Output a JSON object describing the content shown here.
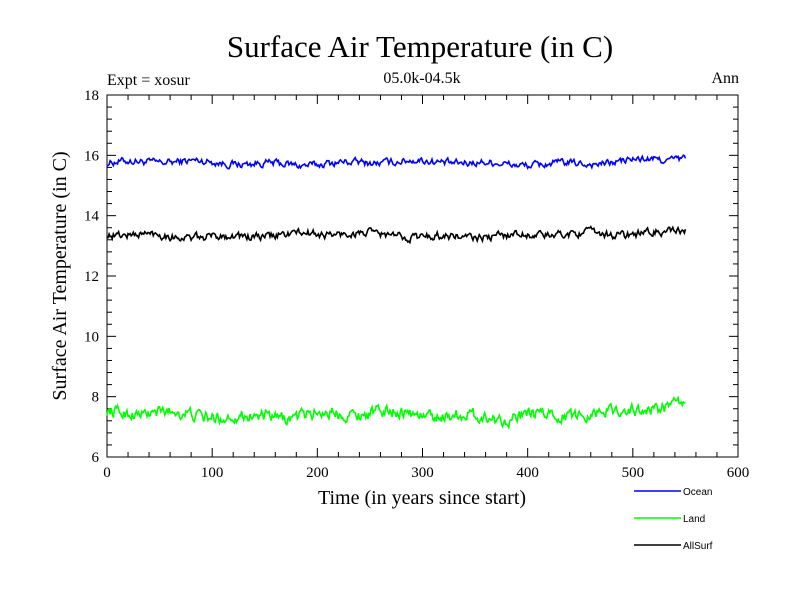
{
  "chart_data": {
    "type": "line",
    "title": "Surface Air Temperature (in C)",
    "subtitle_left": "Expt = xosur",
    "subtitle_center": "05.0k-04.5k",
    "subtitle_right": "Ann",
    "xlabel": "Time (in years since start)",
    "ylabel": "Surface Air Temperature (in C)",
    "xlim": [
      0,
      600
    ],
    "ylim": [
      6,
      18
    ],
    "xticks": [
      0,
      100,
      200,
      300,
      400,
      500,
      600
    ],
    "yticks": [
      6,
      8,
      10,
      12,
      14,
      16,
      18
    ],
    "x_range_of_data": [
      0,
      550
    ],
    "series": [
      {
        "name": "Ocean",
        "color": "#0000ff",
        "mean": 15.75,
        "noise": 0.1,
        "end_value": 15.9
      },
      {
        "name": "Land",
        "color": "#00ff00",
        "mean": 7.4,
        "noise": 0.17,
        "end_value": 7.8
      },
      {
        "name": "AllSurf",
        "color": "#000000",
        "mean": 13.35,
        "noise": 0.11,
        "end_value": 13.55
      }
    ]
  }
}
